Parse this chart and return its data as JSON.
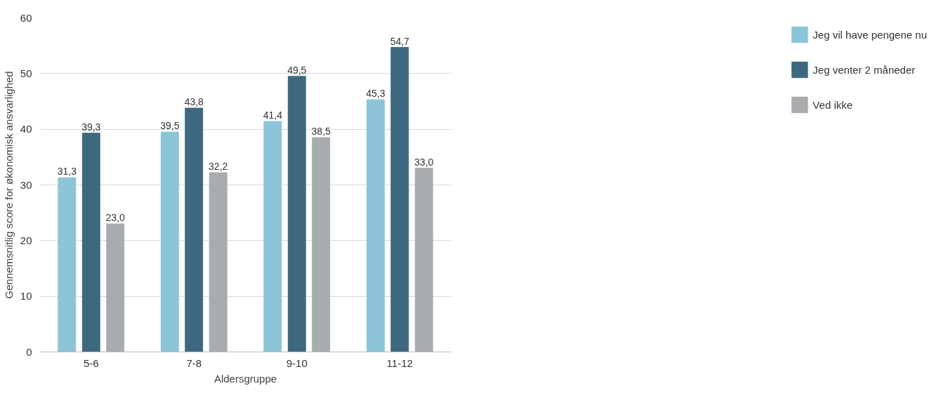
{
  "chart_data": {
    "type": "bar",
    "xlabel": "Aldersgruppe",
    "ylabel": "Gennemsnitlig score for økonomisk ansvarlighed",
    "categories": [
      "5-6",
      "7-8",
      "9-10",
      "11-12"
    ],
    "series": [
      {
        "name": "Jeg vil have pengene nu",
        "color": "#8cc4d8",
        "values": [
          31.3,
          39.5,
          41.4,
          45.3
        ],
        "value_labels": [
          "31,3",
          "39,5",
          "41,4",
          "45,3"
        ]
      },
      {
        "name": "Jeg venter 2 måneder",
        "color": "#3e6880",
        "values": [
          39.3,
          43.8,
          49.5,
          54.7
        ],
        "value_labels": [
          "39,3",
          "43,8",
          "49,5",
          "54,7"
        ]
      },
      {
        "name": "Ved ikke",
        "color": "#a9acaf",
        "values": [
          23.0,
          32.2,
          38.5,
          33.0
        ],
        "value_labels": [
          "23,0",
          "32,2",
          "38,5",
          "33,0"
        ]
      }
    ],
    "ylim": [
      0,
      60
    ],
    "yticks": [
      0,
      10,
      20,
      30,
      40,
      50,
      60
    ],
    "grid": "y",
    "legend": "right"
  }
}
